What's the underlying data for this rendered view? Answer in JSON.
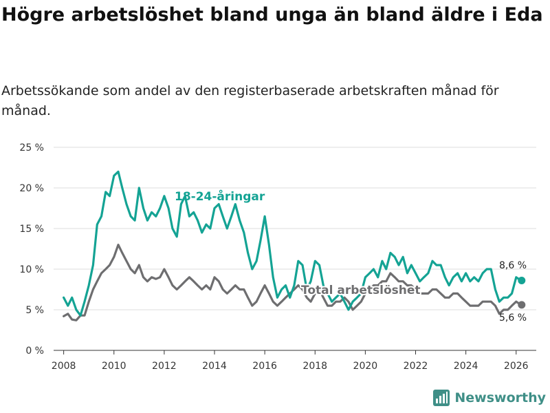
{
  "chart_data": {
    "type": "line",
    "title": "Högre arbetslöshet bland unga än bland äldre i Eda",
    "subtitle": "Arbetssökande som andel av den registerbaserade arbetskraften månad för månad.",
    "xlabel": "",
    "ylabel": "",
    "xlim": [
      2007.6,
      2026.8
    ],
    "ylim": [
      0,
      25
    ],
    "y_ticks": [
      {
        "value": 0,
        "label": "0 %"
      },
      {
        "value": 5,
        "label": "5 %"
      },
      {
        "value": 10,
        "label": "10 %"
      },
      {
        "value": 15,
        "label": "15 %"
      },
      {
        "value": 20,
        "label": "20 %"
      },
      {
        "value": 25,
        "label": "25 %"
      }
    ],
    "x_ticks": [
      {
        "value": 2008,
        "label": "2008"
      },
      {
        "value": 2010,
        "label": "2010"
      },
      {
        "value": 2012,
        "label": "2012"
      },
      {
        "value": 2014,
        "label": "2014"
      },
      {
        "value": 2016,
        "label": "2016"
      },
      {
        "value": 2018,
        "label": "2018"
      },
      {
        "value": 2020,
        "label": "2020"
      },
      {
        "value": 2022,
        "label": "2022"
      },
      {
        "value": 2024,
        "label": "2024"
      },
      {
        "value": 2026,
        "label": "2026"
      }
    ],
    "grid": true,
    "series": [
      {
        "name": "18-24-åringar",
        "color": "#14a394",
        "end_label": "8,6 %",
        "x": [
          2008.0,
          2008.17,
          2008.33,
          2008.5,
          2008.67,
          2008.83,
          2009.0,
          2009.17,
          2009.33,
          2009.5,
          2009.67,
          2009.83,
          2010.0,
          2010.17,
          2010.33,
          2010.5,
          2010.67,
          2010.83,
          2011.0,
          2011.17,
          2011.33,
          2011.5,
          2011.67,
          2011.83,
          2012.0,
          2012.17,
          2012.33,
          2012.5,
          2012.67,
          2012.83,
          2013.0,
          2013.17,
          2013.33,
          2013.5,
          2013.67,
          2013.83,
          2014.0,
          2014.17,
          2014.33,
          2014.5,
          2014.67,
          2014.83,
          2015.0,
          2015.17,
          2015.33,
          2015.5,
          2015.67,
          2015.83,
          2016.0,
          2016.17,
          2016.33,
          2016.5,
          2016.67,
          2016.83,
          2017.0,
          2017.17,
          2017.33,
          2017.5,
          2017.67,
          2017.83,
          2018.0,
          2018.17,
          2018.33,
          2018.5,
          2018.67,
          2018.83,
          2019.0,
          2019.17,
          2019.33,
          2019.5,
          2019.67,
          2019.83,
          2020.0,
          2020.17,
          2020.33,
          2020.5,
          2020.67,
          2020.83,
          2021.0,
          2021.17,
          2021.33,
          2021.5,
          2021.67,
          2021.83,
          2022.0,
          2022.17,
          2022.33,
          2022.5,
          2022.67,
          2022.83,
          2023.0,
          2023.17,
          2023.33,
          2023.5,
          2023.67,
          2023.83,
          2024.0,
          2024.17,
          2024.33,
          2024.5,
          2024.67,
          2024.83,
          2025.0,
          2025.17,
          2025.33,
          2025.5,
          2025.67,
          2025.83,
          2026.0,
          2026.1,
          2026.22
        ],
        "values": [
          6.5,
          5.5,
          6.5,
          5.0,
          4.3,
          6.0,
          8.0,
          10.5,
          15.5,
          16.5,
          19.5,
          19.0,
          21.5,
          22.0,
          20.0,
          18.0,
          16.5,
          16.0,
          20.0,
          17.5,
          16.0,
          17.0,
          16.5,
          17.5,
          19.0,
          17.5,
          15.0,
          14.0,
          18.0,
          19.0,
          16.5,
          17.0,
          16.0,
          14.5,
          15.5,
          15.0,
          17.5,
          18.0,
          16.5,
          15.0,
          16.5,
          18.0,
          16.0,
          14.5,
          12.0,
          10.0,
          11.0,
          13.5,
          16.5,
          13.0,
          9.0,
          6.5,
          7.5,
          8.0,
          6.5,
          8.0,
          11.0,
          10.5,
          7.5,
          8.5,
          11.0,
          10.5,
          8.0,
          7.0,
          6.0,
          6.5,
          7.0,
          6.0,
          5.0,
          6.0,
          6.5,
          7.0,
          9.0,
          9.5,
          10.0,
          9.0,
          11.0,
          10.0,
          12.0,
          11.5,
          10.5,
          11.5,
          9.5,
          10.5,
          9.5,
          8.5,
          9.0,
          9.5,
          11.0,
          10.5,
          10.5,
          9.0,
          8.0,
          9.0,
          9.5,
          8.5,
          9.5,
          8.5,
          9.0,
          8.5,
          9.5,
          10.0,
          10.0,
          7.5,
          6.0,
          6.5,
          6.5,
          7.0,
          9.0,
          8.8,
          8.6
        ]
      },
      {
        "name": "Total arbetslöshet",
        "color": "#6e6e70",
        "end_label": "5,6 %",
        "x": [
          2008.0,
          2008.17,
          2008.33,
          2008.5,
          2008.67,
          2008.83,
          2009.0,
          2009.17,
          2009.33,
          2009.5,
          2009.67,
          2009.83,
          2010.0,
          2010.17,
          2010.33,
          2010.5,
          2010.67,
          2010.83,
          2011.0,
          2011.17,
          2011.33,
          2011.5,
          2011.67,
          2011.83,
          2012.0,
          2012.17,
          2012.33,
          2012.5,
          2012.67,
          2012.83,
          2013.0,
          2013.17,
          2013.33,
          2013.5,
          2013.67,
          2013.83,
          2014.0,
          2014.17,
          2014.33,
          2014.5,
          2014.67,
          2014.83,
          2015.0,
          2015.17,
          2015.33,
          2015.5,
          2015.67,
          2015.83,
          2016.0,
          2016.17,
          2016.33,
          2016.5,
          2016.67,
          2016.83,
          2017.0,
          2017.17,
          2017.33,
          2017.5,
          2017.67,
          2017.83,
          2018.0,
          2018.17,
          2018.33,
          2018.5,
          2018.67,
          2018.83,
          2019.0,
          2019.17,
          2019.33,
          2019.5,
          2019.67,
          2019.83,
          2020.0,
          2020.17,
          2020.33,
          2020.5,
          2020.67,
          2020.83,
          2021.0,
          2021.17,
          2021.33,
          2021.5,
          2021.67,
          2021.83,
          2022.0,
          2022.17,
          2022.33,
          2022.5,
          2022.67,
          2022.83,
          2023.0,
          2023.17,
          2023.33,
          2023.5,
          2023.67,
          2023.83,
          2024.0,
          2024.17,
          2024.33,
          2024.5,
          2024.67,
          2024.83,
          2025.0,
          2025.17,
          2025.33,
          2025.5,
          2025.67,
          2025.83,
          2026.0,
          2026.1,
          2026.22
        ],
        "values": [
          4.2,
          4.5,
          3.8,
          3.7,
          4.3,
          4.3,
          6.0,
          7.5,
          8.5,
          9.5,
          10.0,
          10.5,
          11.5,
          13.0,
          12.0,
          11.0,
          10.0,
          9.5,
          10.5,
          9.0,
          8.5,
          9.0,
          8.8,
          9.0,
          10.0,
          9.0,
          8.0,
          7.5,
          8.0,
          8.5,
          9.0,
          8.5,
          8.0,
          7.5,
          8.0,
          7.5,
          9.0,
          8.5,
          7.5,
          7.0,
          7.5,
          8.0,
          7.5,
          7.5,
          6.5,
          5.5,
          6.0,
          7.0,
          8.0,
          7.0,
          6.0,
          5.5,
          6.0,
          6.5,
          7.0,
          7.5,
          8.0,
          7.5,
          6.5,
          6.0,
          7.0,
          7.5,
          6.5,
          5.5,
          5.5,
          6.0,
          6.0,
          6.5,
          6.0,
          5.0,
          5.5,
          6.0,
          7.0,
          7.5,
          8.0,
          8.0,
          8.5,
          8.5,
          9.5,
          9.0,
          8.5,
          8.5,
          8.0,
          8.0,
          7.5,
          7.0,
          7.0,
          7.0,
          7.5,
          7.5,
          7.0,
          6.5,
          6.5,
          7.0,
          7.0,
          6.5,
          6.0,
          5.5,
          5.5,
          5.5,
          6.0,
          6.0,
          6.0,
          5.5,
          4.5,
          5.0,
          5.0,
          5.5,
          6.0,
          5.8,
          5.6
        ]
      }
    ]
  },
  "footer": {
    "brand": "Newsworthy",
    "brand_color": "#3f8f87"
  },
  "style": {
    "grid_color": "#dddddd",
    "axis_color": "#333333"
  }
}
